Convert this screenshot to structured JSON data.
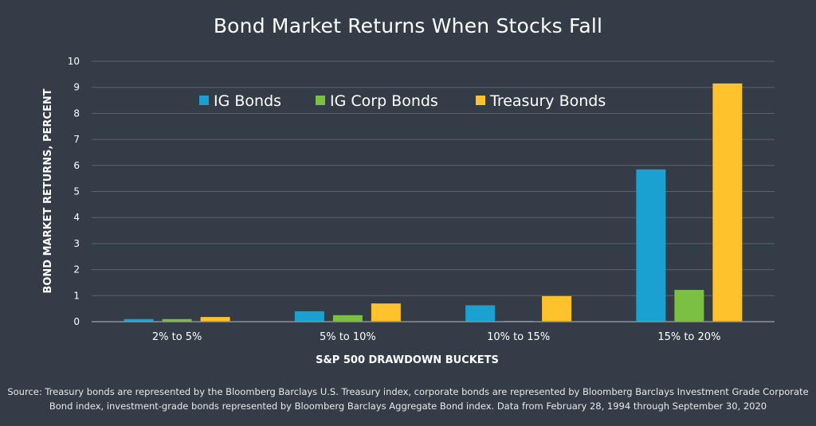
{
  "colors": {
    "background": "#343d47",
    "grid": "#5b646d",
    "axis": "#8a929a",
    "IG Bonds": "#1aa1d1",
    "IG Corp Bonds": "#7bc043",
    "Treasury Bonds": "#fdc22c"
  },
  "source_lines": [
    "Source: Treasury bonds are represented by the Bloomberg Barclays U.S. Treasury index, corporate bonds are represented by Bloomberg Barclays Investment Grade Corporate",
    "Bond index, investment-grade bonds represented by Bloomberg Barclays Aggregate Bond index. Data from February 28, 1994 through September 30, 2020"
  ],
  "chart_data": {
    "type": "bar",
    "title": "Bond Market Returns When Stocks Fall",
    "xlabel": "S&P 500 DRAWDOWN BUCKETS",
    "ylabel": "BOND MARKET RETURNS, PERCENT",
    "categories": [
      "2% to 5%",
      "5% to 10%",
      "10% to 15%",
      "15% to 20%"
    ],
    "series": [
      {
        "name": "IG Bonds",
        "values": [
          0.1,
          0.4,
          0.63,
          5.85
        ]
      },
      {
        "name": "IG Corp Bonds",
        "values": [
          0.1,
          0.25,
          0.03,
          1.22
        ]
      },
      {
        "name": "Treasury Bonds",
        "values": [
          0.18,
          0.7,
          0.98,
          9.15
        ]
      }
    ],
    "ylim": [
      0,
      10
    ],
    "yticks": [
      0,
      1,
      2,
      3,
      4,
      5,
      6,
      7,
      8,
      9,
      10
    ],
    "grid": true,
    "legend_position": "top-left"
  }
}
